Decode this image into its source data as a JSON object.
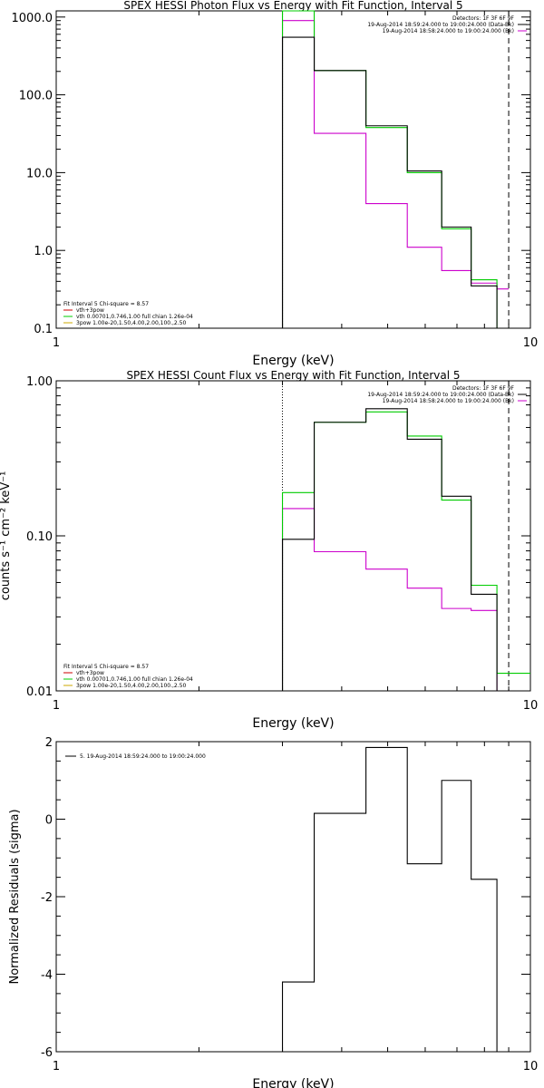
{
  "chart_data": [
    {
      "type": "line",
      "title": "SPEX HESSI Photon Flux vs Energy with Fit Function, Interval 5",
      "xlabel": "Energy (keV)",
      "ylabel": "",
      "xscale": "log",
      "yscale": "log",
      "xlim": [
        1,
        10
      ],
      "ylim": [
        0.1,
        1200
      ],
      "xticks": [
        {
          "v": 1,
          "label": "1"
        },
        {
          "v": 10,
          "label": "10"
        }
      ],
      "yticks": [
        {
          "v": 1000,
          "label": "1000.0"
        },
        {
          "v": 100,
          "label": "100.0"
        },
        {
          "v": 10,
          "label": "10.0"
        },
        {
          "v": 1,
          "label": "1.0"
        },
        {
          "v": 0.1,
          "label": "0.1"
        }
      ],
      "vlines": [
        {
          "x": 3.0,
          "style": "dotted",
          "color": "#000000"
        },
        {
          "x": 9.0,
          "style": "dashed",
          "color": "#000000"
        }
      ],
      "legend_topright": {
        "lines": [
          {
            "text": "Detectors: 1F 3F 6F 9F",
            "color": null
          },
          {
            "text": "19-Aug-2014 18:59:24.000 to 19:00:24.000 (Data-Bk)",
            "color": "#000000"
          },
          {
            "text": "19-Aug-2014 18:58:24.000 to 19:00:24.000 (Bk)",
            "color": "#cc00cc"
          }
        ]
      },
      "legend_bottomleft": {
        "lines": [
          {
            "text": "Fit Interval 5   Chi-square = 8.57",
            "color": null
          },
          {
            "text": "vth+3pow",
            "color": "#cc0000"
          },
          {
            "text": "vth 0.00701,0.746,1.00  full chian 1.26e-04",
            "color": "#00cc00"
          },
          {
            "text": "3pow 1.00e-20,1.50,4.00,2.00,100.,2.50",
            "color": "#ccaa00"
          }
        ]
      },
      "series": [
        {
          "color": "#cc00cc",
          "edges": [
            3.0,
            3.5,
            4.5,
            5.5,
            6.5,
            7.5,
            8.5,
            9.0
          ],
          "values": [
            900,
            32,
            4.0,
            1.1,
            0.55,
            0.38,
            0.32
          ]
        },
        {
          "color": "#00cc00",
          "edges": [
            3.0,
            3.5,
            4.5,
            5.5,
            6.5,
            7.5,
            8.5,
            9.0
          ],
          "values": [
            1200,
            205,
            38,
            10,
            1.9,
            0.42,
            0.1
          ]
        },
        {
          "color": "#000000",
          "edges": [
            3.0,
            3.5,
            4.5,
            5.5,
            6.5,
            7.5,
            8.5,
            9.0
          ],
          "values": [
            550,
            205,
            40,
            10.5,
            2.0,
            0.35,
            0.1
          ]
        }
      ]
    },
    {
      "type": "line",
      "title": "SPEX HESSI Count Flux vs Energy with Fit Function, Interval 5",
      "xlabel": "Energy (keV)",
      "ylabel": "counts s⁻¹ cm⁻² keV⁻¹",
      "xscale": "log",
      "yscale": "log",
      "xlim": [
        1,
        10
      ],
      "ylim": [
        0.01,
        1.0
      ],
      "xticks": [
        {
          "v": 1,
          "label": "1"
        },
        {
          "v": 10,
          "label": "10"
        }
      ],
      "yticks": [
        {
          "v": 1.0,
          "label": "1.00"
        },
        {
          "v": 0.1,
          "label": "0.10"
        },
        {
          "v": 0.01,
          "label": "0.01"
        }
      ],
      "vlines": [
        {
          "x": 3.0,
          "style": "dotted",
          "color": "#000000"
        },
        {
          "x": 9.0,
          "style": "dashed",
          "color": "#000000"
        }
      ],
      "legend_topright": {
        "lines": [
          {
            "text": "Detectors: 1F 3F 6F 9F",
            "color": null
          },
          {
            "text": "19-Aug-2014 18:59:24.000 to 19:00:24.000 (Data-Bk)",
            "color": "#000000"
          },
          {
            "text": "19-Aug-2014 18:58:24.000 to 19:00:24.000 (Bk)",
            "color": "#cc00cc"
          }
        ]
      },
      "legend_bottomleft": {
        "lines": [
          {
            "text": "Fit Interval 5   Chi-square = 8.57",
            "color": null
          },
          {
            "text": "vth+3pow",
            "color": "#cc0000"
          },
          {
            "text": "vth 0.00701,0.746,1.00  full chian 1.26e-04",
            "color": "#00cc00"
          },
          {
            "text": "3pow 1.00e-20,1.50,4.00,2.00,100.,2.50",
            "color": "#ccaa00"
          }
        ]
      },
      "series": [
        {
          "color": "#cc00cc",
          "edges": [
            3.0,
            3.5,
            4.5,
            5.5,
            6.5,
            7.5,
            8.5,
            9.0
          ],
          "values": [
            0.15,
            0.079,
            0.061,
            0.046,
            0.034,
            0.033,
            0.01
          ]
        },
        {
          "color": "#00cc00",
          "edges": [
            3.0,
            3.5,
            4.5,
            5.5,
            6.5,
            7.5,
            8.5,
            9.0,
            10.0
          ],
          "values": [
            0.19,
            0.54,
            0.63,
            0.44,
            0.17,
            0.048,
            0.013,
            0.013
          ]
        },
        {
          "color": "#000000",
          "edges": [
            3.0,
            3.5,
            4.5,
            5.5,
            6.5,
            7.5,
            8.5,
            9.0
          ],
          "values": [
            0.095,
            0.54,
            0.66,
            0.42,
            0.18,
            0.042,
            0.01
          ]
        }
      ]
    },
    {
      "type": "line",
      "title": "",
      "xlabel": "Energy (keV)",
      "ylabel": "Normalized Residuals (sigma)",
      "xscale": "log",
      "yscale": "linear",
      "xlim": [
        1,
        10
      ],
      "ylim": [
        -6,
        2
      ],
      "xticks": [
        {
          "v": 1,
          "label": "1"
        },
        {
          "v": 10,
          "label": "10"
        }
      ],
      "yticks": [
        {
          "v": 2,
          "label": "2"
        },
        {
          "v": 0,
          "label": "0"
        },
        {
          "v": -2,
          "label": "-2"
        },
        {
          "v": -4,
          "label": "-4"
        },
        {
          "v": -6,
          "label": "-6"
        }
      ],
      "vlines": [],
      "legend_topleft": {
        "lines": [
          {
            "text": "5. 19-Aug-2014 18:59:24.000 to 19:00:24.000",
            "color": "#000000"
          }
        ]
      },
      "series": [
        {
          "color": "#000000",
          "edges": [
            3.0,
            3.5,
            4.5,
            5.5,
            6.5,
            7.5,
            8.5,
            9.0
          ],
          "values": [
            -4.2,
            0.15,
            1.85,
            -1.15,
            1.0,
            -1.55,
            -6.0
          ]
        }
      ]
    }
  ]
}
